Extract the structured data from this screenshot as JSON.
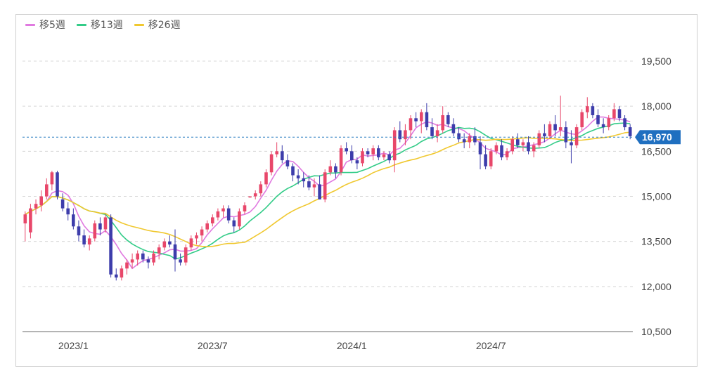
{
  "legend": [
    {
      "label": "移5週",
      "color": "#e07ae0"
    },
    {
      "label": "移13週",
      "color": "#33cc88"
    },
    {
      "label": "移26週",
      "color": "#f0c830"
    }
  ],
  "chart_data": {
    "type": "candlestick",
    "y_ticks": [
      19500,
      18000,
      16500,
      15000,
      13500,
      12000,
      10500
    ],
    "y_tick_labels": [
      "19,500",
      "18,000",
      "16,500",
      "15,000",
      "13,500",
      "12,000",
      "10,500"
    ],
    "ylim": [
      10500,
      20500
    ],
    "x_tick_labels": [
      "2023/1",
      "2023/7",
      "2024/1",
      "2024/7"
    ],
    "x_tick_index": [
      9,
      35,
      61,
      87
    ],
    "current_price": 16970,
    "current_price_label": "16,970",
    "up_color": "#e8476a",
    "down_color": "#3d3dab",
    "candles": [
      [
        14100,
        14500,
        13500,
        14400
      ],
      [
        13800,
        14750,
        13600,
        14600
      ],
      [
        14600,
        14900,
        14400,
        14750
      ],
      [
        14700,
        15200,
        14500,
        15000
      ],
      [
        15000,
        15600,
        14900,
        15400
      ],
      [
        15400,
        15850,
        15200,
        15800
      ],
      [
        15800,
        15850,
        14900,
        15000
      ],
      [
        14900,
        15100,
        14500,
        14600
      ],
      [
        14600,
        14800,
        14200,
        14400
      ],
      [
        14400,
        14600,
        13900,
        14000
      ],
      [
        14000,
        14200,
        13500,
        13700
      ],
      [
        13700,
        13900,
        13300,
        13400
      ],
      [
        13400,
        13700,
        13200,
        13600
      ],
      [
        13600,
        14200,
        13500,
        14100
      ],
      [
        14100,
        14300,
        13700,
        13900
      ],
      [
        13900,
        14400,
        13800,
        14300
      ],
      [
        14300,
        14400,
        12300,
        12400
      ],
      [
        12400,
        12600,
        12200,
        12300
      ],
      [
        12300,
        12700,
        12200,
        12600
      ],
      [
        12600,
        12900,
        12400,
        12800
      ],
      [
        12800,
        13100,
        12600,
        12900
      ],
      [
        12900,
        13200,
        12700,
        13100
      ],
      [
        13100,
        13200,
        12800,
        12900
      ],
      [
        12900,
        13000,
        12600,
        12800
      ],
      [
        12800,
        13200,
        12700,
        13100
      ],
      [
        13100,
        13400,
        12900,
        13300
      ],
      [
        13300,
        13600,
        13200,
        13500
      ],
      [
        13500,
        13700,
        13300,
        13400
      ],
      [
        13400,
        13900,
        12500,
        12900
      ],
      [
        12900,
        13100,
        12700,
        12800
      ],
      [
        12800,
        13400,
        12700,
        13300
      ],
      [
        13300,
        13700,
        13200,
        13600
      ],
      [
        13600,
        13800,
        13400,
        13700
      ],
      [
        13700,
        14000,
        13500,
        13900
      ],
      [
        13900,
        14200,
        13800,
        14100
      ],
      [
        14100,
        14400,
        14000,
        14300
      ],
      [
        14300,
        14600,
        14200,
        14500
      ],
      [
        14500,
        14700,
        14300,
        14600
      ],
      [
        14600,
        14700,
        14100,
        14200
      ],
      [
        14200,
        14300,
        13800,
        14000
      ],
      [
        14000,
        14600,
        13900,
        14500
      ],
      [
        14500,
        14800,
        14400,
        14700
      ],
      [
        15000,
        15000,
        14950,
        15000
      ],
      [
        15000,
        15200,
        14900,
        15100
      ],
      [
        15100,
        15500,
        15000,
        15400
      ],
      [
        15400,
        15900,
        15300,
        15800
      ],
      [
        15800,
        16500,
        15700,
        16400
      ],
      [
        16400,
        16800,
        16300,
        16500
      ],
      [
        16500,
        16700,
        16100,
        16200
      ],
      [
        16200,
        16400,
        15900,
        16000
      ],
      [
        16000,
        16100,
        15500,
        15700
      ],
      [
        15700,
        15900,
        15400,
        15600
      ],
      [
        15600,
        15800,
        15300,
        15500
      ],
      [
        15500,
        15700,
        15200,
        15300
      ],
      [
        15300,
        15600,
        15000,
        15400
      ],
      [
        15400,
        15700,
        14900,
        14900
      ],
      [
        14900,
        15900,
        14800,
        15800
      ],
      [
        15800,
        16200,
        15700,
        16000
      ],
      [
        16000,
        16100,
        15600,
        15800
      ],
      [
        15800,
        16700,
        15700,
        16600
      ],
      [
        16600,
        16800,
        16400,
        16500
      ],
      [
        16500,
        16700,
        16100,
        16200
      ],
      [
        16200,
        16300,
        15900,
        16100
      ],
      [
        16100,
        16600,
        16000,
        16500
      ],
      [
        16500,
        16600,
        16300,
        16400
      ],
      [
        16400,
        16700,
        16200,
        16600
      ],
      [
        16600,
        16700,
        16200,
        16300
      ],
      [
        16300,
        16500,
        16200,
        16400
      ],
      [
        16400,
        16500,
        16100,
        16200
      ],
      [
        16200,
        17300,
        15800,
        17200
      ],
      [
        17200,
        17500,
        16800,
        16900
      ],
      [
        16900,
        17400,
        16700,
        17200
      ],
      [
        17200,
        17700,
        16900,
        17600
      ],
      [
        17600,
        17800,
        17300,
        17500
      ],
      [
        17500,
        17900,
        17100,
        17800
      ],
      [
        17800,
        18100,
        17200,
        17300
      ],
      [
        17300,
        17600,
        16900,
        17000
      ],
      [
        17000,
        17400,
        16800,
        17200
      ],
      [
        17200,
        18000,
        17100,
        17700
      ],
      [
        17700,
        17800,
        17300,
        17400
      ],
      [
        17400,
        17600,
        17000,
        17100
      ],
      [
        17100,
        17300,
        16800,
        16900
      ],
      [
        16900,
        17100,
        16600,
        16800
      ],
      [
        16800,
        17100,
        16600,
        17000
      ],
      [
        17000,
        17300,
        16700,
        16800
      ],
      [
        16800,
        17000,
        15900,
        16400
      ],
      [
        16400,
        16700,
        15900,
        16000
      ],
      [
        16000,
        16600,
        15900,
        16500
      ],
      [
        16500,
        16800,
        16400,
        16700
      ],
      [
        16700,
        16900,
        16200,
        16300
      ],
      [
        16300,
        16600,
        16200,
        16500
      ],
      [
        16500,
        17000,
        16400,
        16900
      ],
      [
        16900,
        17100,
        16600,
        16700
      ],
      [
        16700,
        16900,
        16500,
        16800
      ],
      [
        16800,
        17000,
        16400,
        16500
      ],
      [
        16500,
        16800,
        16300,
        16700
      ],
      [
        16700,
        17200,
        16600,
        17100
      ],
      [
        17100,
        17400,
        16800,
        17000
      ],
      [
        17000,
        17500,
        16900,
        17400
      ],
      [
        17400,
        17700,
        17000,
        17200
      ],
      [
        17200,
        18350,
        17000,
        17300
      ],
      [
        17300,
        17500,
        16600,
        16800
      ],
      [
        16800,
        17200,
        16100,
        16700
      ],
      [
        16700,
        17400,
        16600,
        17300
      ],
      [
        17300,
        17900,
        17200,
        17800
      ],
      [
        17800,
        18300,
        17600,
        18000
      ],
      [
        18000,
        18100,
        17600,
        17700
      ],
      [
        17700,
        17900,
        17300,
        17400
      ],
      [
        17400,
        17600,
        17100,
        17300
      ],
      [
        17300,
        17700,
        17200,
        17600
      ],
      [
        17600,
        18100,
        17500,
        17900
      ],
      [
        17900,
        18000,
        17500,
        17600
      ],
      [
        17600,
        17700,
        17200,
        17300
      ],
      [
        17300,
        17400,
        16900,
        17000
      ]
    ]
  }
}
